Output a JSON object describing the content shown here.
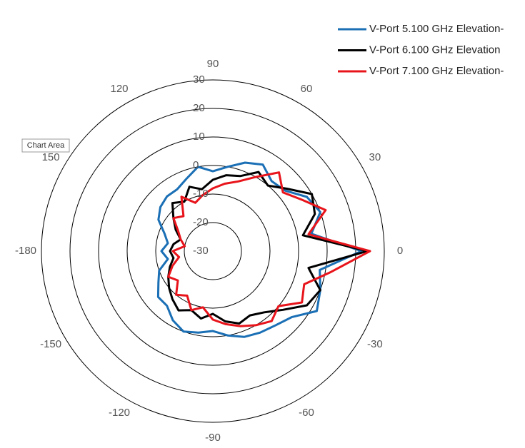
{
  "chart_data": {
    "type": "polar",
    "tooltip": "Chart Area",
    "theta": [
      0,
      10,
      20,
      30,
      40,
      50,
      60,
      70,
      80,
      90,
      100,
      110,
      120,
      130,
      140,
      150,
      160,
      170,
      180,
      -170,
      -160,
      -150,
      -140,
      -130,
      -120,
      -110,
      -100,
      -90,
      -80,
      -70,
      -60,
      -50,
      -40,
      -30,
      -20,
      -10
    ],
    "thetaticks": [
      0,
      30,
      60,
      90,
      120,
      150,
      -180,
      -150,
      -120,
      -90,
      -60,
      -30
    ],
    "rlim": [
      -30,
      30
    ],
    "rticks": [
      -30,
      -20,
      -10,
      0,
      10,
      20,
      30
    ],
    "series": [
      {
        "name": "V-Port 5.100 GHz Elevation-",
        "color": "#1a6fb5",
        "values": [
          22,
          5,
          10,
          8,
          3,
          2,
          5,
          3,
          0,
          -2,
          0,
          -3,
          -5,
          -5,
          -6,
          -8,
          -12,
          -14,
          -12,
          -14,
          -10,
          -8,
          -5,
          -5,
          -2,
          0,
          -1,
          -2,
          0,
          2,
          3,
          4,
          6,
          12,
          10,
          8
        ]
      },
      {
        "name": "V-Port 6.100 GHz Elevation",
        "color": "#000000",
        "values": [
          24,
          2,
          8,
          10,
          4,
          0,
          2,
          -2,
          -3,
          -5,
          -8,
          -6,
          -10,
          -8,
          -12,
          -15,
          -18,
          -16,
          -15,
          -16,
          -14,
          -12,
          -10,
          -8,
          -6,
          -8,
          -6,
          -8,
          -5,
          -3,
          -4,
          -2,
          2,
          8,
          10,
          4
        ]
      },
      {
        "name": "V-Port 7.100 GHz Elevation-",
        "color": "#e8141b",
        "values": [
          25,
          4,
          12,
          6,
          2,
          6,
          0,
          -4,
          -6,
          -8,
          -10,
          -12,
          -8,
          -14,
          -12,
          -16,
          -18,
          -20,
          -16,
          -18,
          -15,
          -12,
          -14,
          -10,
          -12,
          -8,
          -10,
          -6,
          -4,
          -2,
          0,
          2,
          0,
          6,
          4,
          12
        ]
      }
    ]
  }
}
